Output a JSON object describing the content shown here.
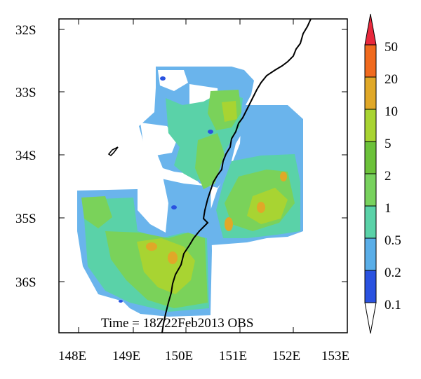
{
  "map": {
    "annotation": "Time = 18Z22Feb2013 OBS",
    "y_ticks": [
      "32S",
      "33S",
      "34S",
      "35S",
      "36S"
    ],
    "x_ticks": [
      "148E",
      "149E",
      "150E",
      "151E",
      "152E",
      "153E"
    ]
  },
  "colorbar": {
    "labels": [
      "50",
      "20",
      "10",
      "5",
      "2",
      "1",
      "0.5",
      "0.2",
      "0.1"
    ],
    "colors": {
      "above_50": "#e8283c",
      "20_50": "#f06a1e",
      "10_20": "#e0a828",
      "5_10": "#a8d432",
      "2_5": "#6cc23a",
      "1_2": "#78d25e",
      "0.5_1": "#5ad2a8",
      "0.2_0.5": "#5aaee8",
      "0.1_0.2": "#2a52e0",
      "below_0.1": "#ffffff"
    }
  },
  "colors": {
    "coastline": "#000000",
    "frame": "#000000",
    "background": "#ffffff"
  }
}
